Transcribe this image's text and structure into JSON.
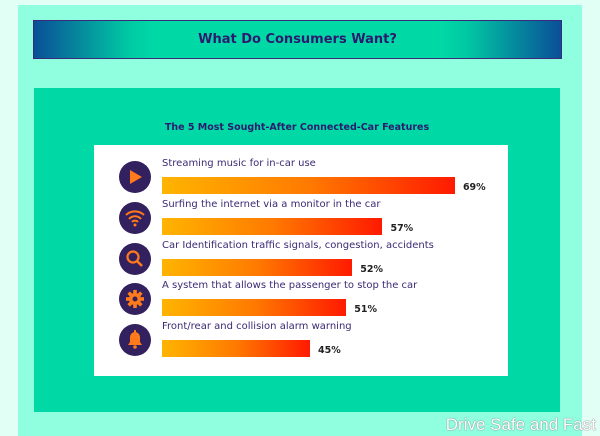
{
  "header": {
    "title": "What Do Consumers Want?"
  },
  "chart_data": {
    "type": "bar",
    "orientation": "horizontal",
    "title": "The 5 Most Sought-After Connected-Car Features",
    "categories": [
      "Streaming music for in-car use",
      "Surfing the internet via a monitor in the car",
      "Car Identification traffic signals, congestion, accidents",
      "A system that allows the passenger to stop the car",
      "Front/rear and collision alarm warning"
    ],
    "values": [
      69,
      57,
      52,
      51,
      45
    ],
    "value_labels": [
      "69%",
      "57%",
      "52%",
      "51%",
      "45%"
    ],
    "icons": [
      "play-icon",
      "wifi-icon",
      "search-icon",
      "gear-icon",
      "bell-icon"
    ],
    "unit": "%"
  },
  "colors": {
    "icon_fg": "#ff7a1a",
    "icon_bg": "#33205e"
  },
  "watermark": "Drive Safe and Fast"
}
